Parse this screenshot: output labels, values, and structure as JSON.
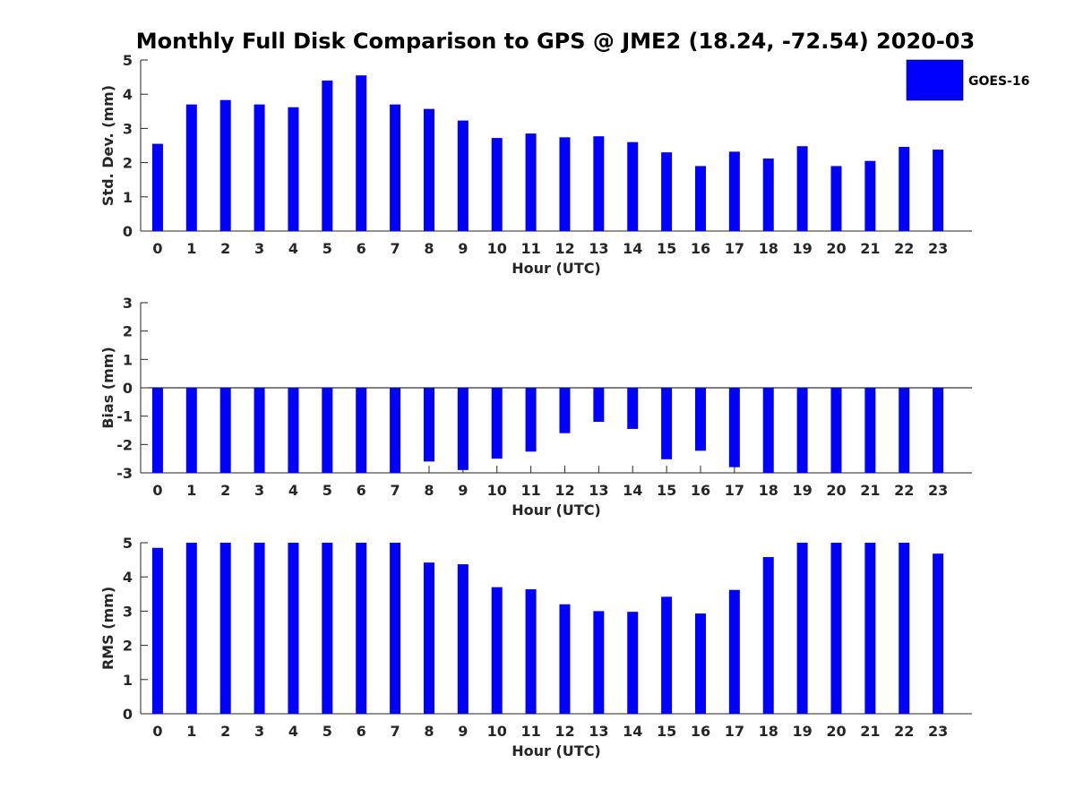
{
  "chart_data": {
    "title": "Monthly Full Disk Comparison to GPS @ JME2 (18.24, -72.54) 2020-03",
    "legend": {
      "position": "top-right",
      "entries": [
        "GOES-16"
      ]
    },
    "bar_color": "#0000ff",
    "grid": false,
    "panels": [
      {
        "type": "bar",
        "xlabel": "Hour (UTC)",
        "ylabel": "Std. Dev. (mm)",
        "ylim": [
          0,
          5
        ],
        "yticks": [
          "0",
          "1",
          "2",
          "3",
          "4",
          "5"
        ],
        "categories": [
          "0",
          "1",
          "2",
          "3",
          "4",
          "5",
          "6",
          "7",
          "8",
          "9",
          "10",
          "11",
          "12",
          "13",
          "14",
          "15",
          "16",
          "17",
          "18",
          "19",
          "20",
          "21",
          "22",
          "23"
        ],
        "series": [
          {
            "name": "GOES-16",
            "values": [
              2.55,
              3.7,
              3.83,
              3.7,
              3.62,
              4.4,
              4.55,
              3.7,
              3.57,
              3.23,
              2.72,
              2.85,
              2.74,
              2.77,
              2.6,
              2.3,
              1.9,
              2.32,
              2.12,
              2.48,
              1.9,
              2.05,
              2.46,
              2.38
            ]
          }
        ]
      },
      {
        "type": "bar",
        "xlabel": "Hour (UTC)",
        "ylabel": "Bias (mm)",
        "ylim": [
          -3,
          3
        ],
        "yticks": [
          "-3",
          "-2",
          "-1",
          "0",
          "1",
          "2",
          "3"
        ],
        "categories": [
          "0",
          "1",
          "2",
          "3",
          "4",
          "5",
          "6",
          "7",
          "8",
          "9",
          "10",
          "11",
          "12",
          "13",
          "14",
          "15",
          "16",
          "17",
          "18",
          "19",
          "20",
          "21",
          "22",
          "23"
        ],
        "series": [
          {
            "name": "GOES-16",
            "values": [
              -3,
              -3,
              -3,
              -3,
              -3,
              -3,
              -3,
              -3,
              -2.6,
              -2.9,
              -2.5,
              -2.25,
              -1.6,
              -1.2,
              -1.45,
              -2.52,
              -2.22,
              -2.8,
              -3,
              -3,
              -3,
              -3,
              -3,
              -3
            ]
          }
        ]
      },
      {
        "type": "bar",
        "xlabel": "Hour (UTC)",
        "ylabel": "RMS (mm)",
        "ylim": [
          0,
          5
        ],
        "yticks": [
          "0",
          "1",
          "2",
          "3",
          "4",
          "5"
        ],
        "categories": [
          "0",
          "1",
          "2",
          "3",
          "4",
          "5",
          "6",
          "7",
          "8",
          "9",
          "10",
          "11",
          "12",
          "13",
          "14",
          "15",
          "16",
          "17",
          "18",
          "19",
          "20",
          "21",
          "22",
          "23"
        ],
        "series": [
          {
            "name": "GOES-16",
            "values": [
              4.85,
              5,
              5,
              5,
              5,
              5,
              5,
              5,
              4.42,
              4.37,
              3.7,
              3.64,
              3.2,
              3.0,
              2.98,
              3.42,
              2.93,
              3.62,
              4.58,
              5,
              5,
              5,
              5,
              4.68
            ]
          }
        ]
      }
    ]
  }
}
